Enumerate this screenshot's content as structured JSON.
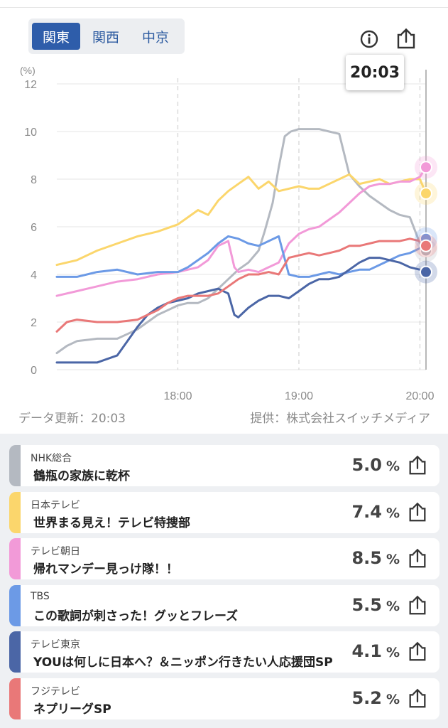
{
  "region_tabs": [
    {
      "label": "関東",
      "active": true
    },
    {
      "label": "関西",
      "active": false
    },
    {
      "label": "中京",
      "active": false
    }
  ],
  "header_icons": [
    "info-icon",
    "share-icon"
  ],
  "current_time": "20:03",
  "chart_data": {
    "type": "line",
    "y_unit_label": "(%)",
    "ylim": [
      0,
      12
    ],
    "y_ticks": [
      "0",
      "2",
      "4",
      "6",
      "8",
      "10",
      "12"
    ],
    "x_ticks": [
      "18:00",
      "19:00",
      "20:00"
    ],
    "xlim_minutes": [
      1020,
      1203
    ],
    "grid": true,
    "series": [
      {
        "name": "NHK総合",
        "color": "#b4b9c1",
        "x": [
          1020,
          1025,
          1030,
          1040,
          1050,
          1055,
          1060,
          1065,
          1070,
          1075,
          1080,
          1085,
          1090,
          1095,
          1100,
          1105,
          1110,
          1115,
          1120,
          1123,
          1127,
          1130,
          1133,
          1136,
          1140,
          1145,
          1150,
          1155,
          1160,
          1165,
          1170,
          1175,
          1180,
          1185,
          1190,
          1195,
          1200,
          1203
        ],
        "y": [
          0.7,
          1.0,
          1.2,
          1.3,
          1.3,
          1.5,
          1.7,
          2.0,
          2.3,
          2.5,
          2.7,
          2.8,
          2.8,
          3.0,
          3.4,
          3.8,
          4.2,
          4.5,
          5.0,
          5.8,
          7.0,
          8.5,
          9.8,
          10.0,
          10.1,
          10.1,
          10.1,
          10.0,
          9.9,
          8.2,
          7.7,
          7.3,
          7.0,
          6.7,
          6.5,
          6.4,
          5.3,
          5.0
        ]
      },
      {
        "name": "日本テレビ",
        "color": "#fbd66c",
        "x": [
          1020,
          1030,
          1040,
          1050,
          1060,
          1070,
          1080,
          1085,
          1090,
          1095,
          1100,
          1105,
          1110,
          1115,
          1120,
          1125,
          1130,
          1135,
          1140,
          1145,
          1150,
          1155,
          1160,
          1165,
          1170,
          1175,
          1180,
          1185,
          1190,
          1195,
          1200,
          1203
        ],
        "y": [
          4.4,
          4.6,
          5.0,
          5.3,
          5.6,
          5.8,
          6.1,
          6.4,
          6.7,
          6.5,
          7.1,
          7.5,
          7.8,
          8.1,
          7.6,
          7.9,
          7.5,
          7.6,
          7.7,
          7.6,
          7.6,
          7.8,
          8.0,
          8.2,
          7.8,
          7.9,
          8.0,
          7.8,
          7.9,
          8.0,
          8.0,
          7.4
        ]
      },
      {
        "name": "テレビ朝日",
        "color": "#f29ad8",
        "x": [
          1020,
          1030,
          1040,
          1050,
          1060,
          1070,
          1080,
          1090,
          1095,
          1100,
          1105,
          1108,
          1110,
          1115,
          1120,
          1125,
          1130,
          1135,
          1140,
          1145,
          1150,
          1155,
          1160,
          1165,
          1170,
          1175,
          1180,
          1185,
          1190,
          1195,
          1200,
          1203
        ],
        "y": [
          3.1,
          3.3,
          3.5,
          3.7,
          3.8,
          4.0,
          4.1,
          4.3,
          4.6,
          5.2,
          5.4,
          4.3,
          4.1,
          4.2,
          4.1,
          4.3,
          4.5,
          5.3,
          5.7,
          5.9,
          6.0,
          6.3,
          6.6,
          7.0,
          7.4,
          7.7,
          7.8,
          7.8,
          7.9,
          7.9,
          8.1,
          8.5
        ]
      },
      {
        "name": "TBS",
        "color": "#6c9ae6",
        "x": [
          1020,
          1030,
          1040,
          1050,
          1060,
          1070,
          1080,
          1085,
          1090,
          1095,
          1100,
          1105,
          1110,
          1115,
          1120,
          1125,
          1130,
          1135,
          1140,
          1145,
          1150,
          1155,
          1160,
          1165,
          1170,
          1175,
          1180,
          1185,
          1190,
          1195,
          1200,
          1203
        ],
        "y": [
          3.9,
          3.9,
          4.1,
          4.2,
          4.0,
          4.1,
          4.1,
          4.3,
          4.6,
          4.9,
          5.3,
          5.6,
          5.5,
          5.3,
          5.2,
          5.4,
          5.6,
          4.0,
          3.9,
          3.9,
          4.0,
          4.1,
          4.0,
          4.1,
          4.2,
          4.2,
          4.4,
          4.6,
          4.8,
          4.9,
          5.1,
          5.5
        ]
      },
      {
        "name": "テレビ東京",
        "color": "#4b66a6",
        "x": [
          1020,
          1030,
          1040,
          1050,
          1055,
          1060,
          1065,
          1070,
          1075,
          1080,
          1085,
          1090,
          1095,
          1100,
          1105,
          1108,
          1110,
          1115,
          1120,
          1125,
          1130,
          1135,
          1140,
          1145,
          1150,
          1155,
          1160,
          1165,
          1170,
          1175,
          1180,
          1185,
          1190,
          1195,
          1200,
          1203
        ],
        "y": [
          0.3,
          0.3,
          0.3,
          0.6,
          1.2,
          1.8,
          2.3,
          2.6,
          2.8,
          2.9,
          3.0,
          3.2,
          3.3,
          3.4,
          3.2,
          2.3,
          2.2,
          2.6,
          2.9,
          3.1,
          3.1,
          3.0,
          3.3,
          3.6,
          3.8,
          3.8,
          3.9,
          4.2,
          4.5,
          4.7,
          4.7,
          4.6,
          4.5,
          4.3,
          4.2,
          4.1
        ]
      },
      {
        "name": "フジテレビ",
        "color": "#e97878",
        "x": [
          1020,
          1025,
          1030,
          1040,
          1050,
          1060,
          1065,
          1070,
          1075,
          1080,
          1085,
          1090,
          1095,
          1100,
          1105,
          1110,
          1115,
          1120,
          1125,
          1130,
          1135,
          1140,
          1145,
          1150,
          1155,
          1160,
          1165,
          1170,
          1175,
          1180,
          1185,
          1190,
          1195,
          1200,
          1203
        ],
        "y": [
          1.6,
          2.0,
          2.1,
          2.0,
          2.0,
          2.1,
          2.3,
          2.5,
          2.8,
          3.0,
          3.1,
          3.1,
          3.1,
          3.2,
          3.5,
          3.8,
          4.0,
          4.0,
          4.1,
          4.0,
          4.7,
          4.8,
          4.9,
          4.8,
          4.9,
          5.0,
          5.2,
          5.2,
          5.3,
          5.4,
          5.4,
          5.4,
          5.5,
          5.4,
          5.2
        ]
      }
    ]
  },
  "meta": {
    "updated_label": "データ更新：20:03",
    "provider_label": "提供：株式会社スイッチメディア"
  },
  "programs": [
    {
      "station": "NHK総合",
      "title": "鶴瓶の家族に乾杯",
      "rating": "5.0",
      "unit": "%",
      "color": "#b4b9c1"
    },
    {
      "station": "日本テレビ",
      "title": "世界まる見え！テレビ特捜部",
      "rating": "7.4",
      "unit": "%",
      "color": "#fbd66c"
    },
    {
      "station": "テレビ朝日",
      "title": "帰れマンデー見っけ隊！！",
      "rating": "8.5",
      "unit": "%",
      "color": "#f29ad8"
    },
    {
      "station": "TBS",
      "title": "この歌詞が刺さった！グッとフレーズ",
      "rating": "5.5",
      "unit": "%",
      "color": "#6c9ae6"
    },
    {
      "station": "テレビ東京",
      "title": "YOUは何しに日本へ？＆ニッポン行きたい人応援団SP",
      "rating": "4.1",
      "unit": "%",
      "color": "#4b66a6"
    },
    {
      "station": "フジテレビ",
      "title": "ネプリーグSP",
      "rating": "5.2",
      "unit": "%",
      "color": "#e97878"
    }
  ]
}
